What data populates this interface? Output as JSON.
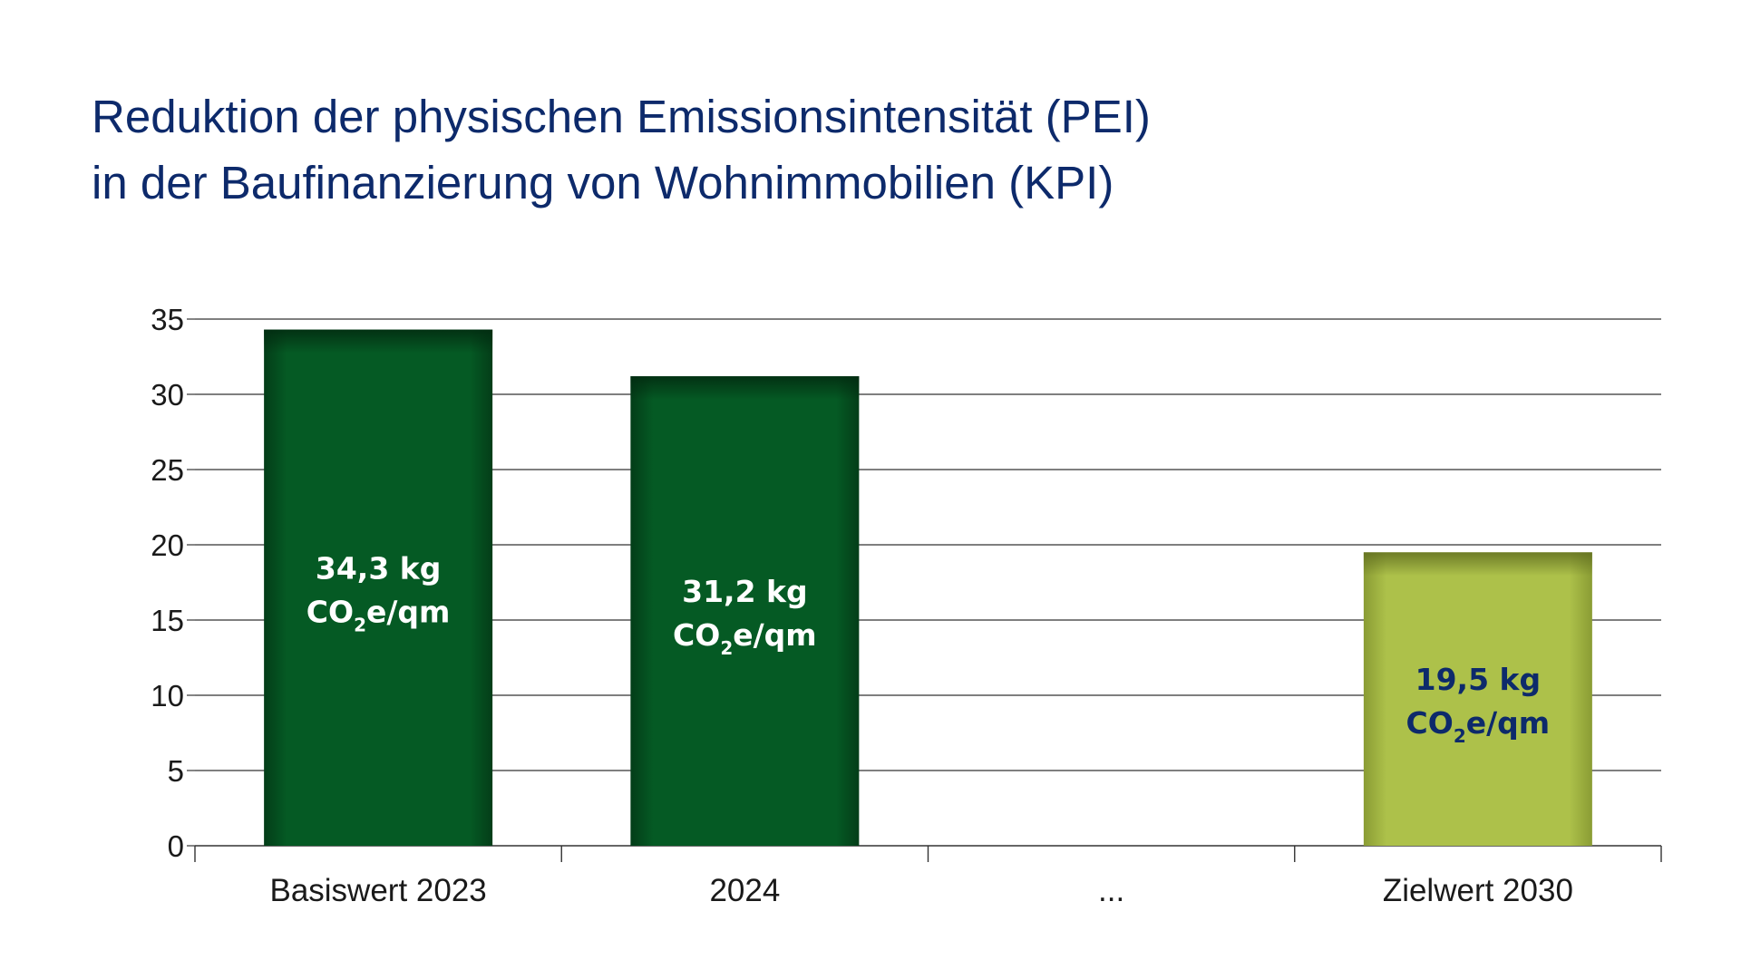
{
  "title_lines": [
    "Reduktion der physischen Emissionsintensität (PEI)",
    "in der Baufinanzierung von Wohnimmobilien (KPI)"
  ],
  "colors": {
    "title": "#0d2a6b",
    "bar_dark_green": "#055a24",
    "bar_light_green": "#adc14a",
    "label_on_dark": "#ffffff",
    "label_on_light": "#0d2a6b",
    "gridline": "#333333"
  },
  "chart_data": {
    "type": "bar",
    "categories": [
      "Basiswert 2023",
      "2024",
      "...",
      "Zielwert 2030"
    ],
    "values": [
      34.3,
      31.2,
      null,
      19.5
    ],
    "bar_colors": [
      "#055a24",
      "#055a24",
      null,
      "#adc14a"
    ],
    "data_labels": [
      {
        "line1": "34,3 kg",
        "prefix": "CO",
        "sub": "2",
        "suffix": "e/qm"
      },
      {
        "line1": "31,2 kg",
        "prefix": "CO",
        "sub": "2",
        "suffix": "e/qm"
      },
      null,
      {
        "line1": "19,5 kg",
        "prefix": "CO",
        "sub": "2",
        "suffix": "e/qm"
      }
    ],
    "ylim": [
      0,
      35
    ],
    "yticks": [
      0,
      5,
      10,
      15,
      20,
      25,
      30,
      35
    ],
    "grid": true,
    "legend": "none"
  }
}
